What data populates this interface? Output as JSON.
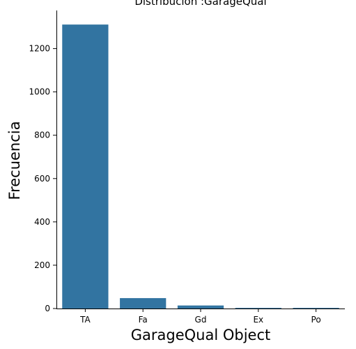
{
  "chart_data": {
    "type": "bar",
    "title": "Distribución :GarageQual",
    "xlabel": "GarageQual Object",
    "ylabel": "Frecuencia",
    "categories": [
      "TA",
      "Fa",
      "Gd",
      "Ex",
      "Po"
    ],
    "values": [
      1311,
      48,
      14,
      3,
      3
    ],
    "ylim": [
      0,
      1376
    ],
    "yticks": [
      0,
      200,
      400,
      600,
      800,
      1000,
      1200
    ],
    "grid": false,
    "bar_color": "#3274a1"
  }
}
